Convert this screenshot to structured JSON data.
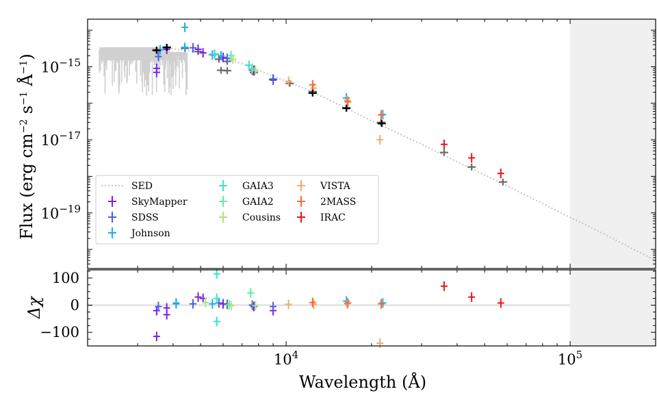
{
  "chart_data": [
    {
      "type": "scatter",
      "panel": "sed",
      "xscale": "log",
      "yscale": "log",
      "xlim": [
        2000,
        200000
      ],
      "ylim": [
        3e-21,
        2e-14
      ],
      "xlabel": "Wavelength (Å)",
      "ylabel": "Flux (erg cm⁻² s⁻¹ Å⁻¹)",
      "ylabel_main": "Flux (erg cm",
      "ylabel_exp1": "−2",
      "ylabel_mid": " s",
      "ylabel_exp2": "−1",
      "ylabel_unit": " Å",
      "ylabel_exp3": "−1",
      "ylabel_end": ")",
      "x_ticks": [
        {
          "value": 10000,
          "base": "10",
          "exp": "4"
        },
        {
          "value": 100000,
          "base": "10",
          "exp": "5"
        }
      ],
      "y_ticks": [
        {
          "value": 1e-15,
          "base": "10",
          "exp": "−15"
        },
        {
          "value": 1e-17,
          "base": "10",
          "exp": "−17"
        },
        {
          "value": 1e-19,
          "base": "10",
          "exp": "−19"
        }
      ],
      "shaded_region": {
        "x_from": 100000,
        "x_to": 200000,
        "color": "#f0f0f0"
      },
      "legend": {
        "placement": "lower-left",
        "entries": [
          {
            "label": "SED",
            "color": "#c8c8c8",
            "style": "dotted"
          },
          {
            "label": "SkyMapper",
            "color": "#7b1fe6"
          },
          {
            "label": "SDSS",
            "color": "#4a5fe0"
          },
          {
            "label": "Johnson",
            "color": "#1eaee6"
          },
          {
            "label": "GAIA3",
            "color": "#37e2d2"
          },
          {
            "label": "GAIA2",
            "color": "#5deba8"
          },
          {
            "label": "Cousins",
            "color": "#a6e87a"
          },
          {
            "label": "VISTA",
            "color": "#f4aa6c"
          },
          {
            "label": "2MASS",
            "color": "#f26b3a"
          },
          {
            "label": "IRAC",
            "color": "#e81414"
          }
        ]
      },
      "sed_model": {
        "color": "#c8c8c8",
        "points": [
          [
            2200,
            2.8e-15
          ],
          [
            2500,
            2.9e-15
          ],
          [
            3000,
            3e-15
          ],
          [
            3500,
            3.1e-15
          ],
          [
            4000,
            3.1e-15
          ],
          [
            5000,
            2.5e-15
          ],
          [
            6000,
            1.8e-15
          ],
          [
            7000,
            1.2e-15
          ],
          [
            8000,
            8e-16
          ],
          [
            10000,
            4e-16
          ],
          [
            12000,
            2.3e-16
          ],
          [
            15000,
            1e-16
          ],
          [
            20000,
            3.3e-17
          ],
          [
            30000,
            7.5e-18
          ],
          [
            40000,
            2.5e-18
          ],
          [
            50000,
            1.1e-18
          ],
          [
            60000,
            5.5e-19
          ],
          [
            80000,
            1.8e-19
          ],
          [
            100000,
            7.5e-20
          ],
          [
            130000,
            2.8e-20
          ],
          [
            160000,
            1.2e-20
          ],
          [
            200000,
            5e-21
          ]
        ],
        "absorption_region": {
          "x_from": 2200,
          "x_to": 4500,
          "min_flux": 1.5e-16
        }
      },
      "model_fluxes": {
        "color": "#6a6a6a",
        "points": [
          [
            3500,
            2.9e-15
          ],
          [
            3800,
            3.3e-15
          ],
          [
            4400,
            3.2e-15
          ],
          [
            4900,
            2.6e-15
          ],
          [
            5600,
            2.2e-15
          ],
          [
            5800,
            1.6e-15
          ],
          [
            6200,
            1.4e-15
          ],
          [
            5900,
            8e-16
          ],
          [
            6200,
            7.8e-16
          ],
          [
            7700,
            7e-16
          ],
          [
            9000,
            4.5e-16
          ],
          [
            10300,
            3.5e-16
          ],
          [
            12400,
            2.1e-16
          ],
          [
            16300,
            7.5e-17
          ],
          [
            21600,
            3e-17
          ],
          [
            36000,
            4.5e-18
          ],
          [
            45000,
            1.8e-18
          ],
          [
            58000,
            7e-19
          ]
        ]
      },
      "series": [
        {
          "name": "SkyMapper",
          "color": "#7b1fe6",
          "points": [
            [
              3500,
              9e-16
            ],
            [
              3500,
              7e-16
            ],
            [
              3800,
              3e-15
            ],
            [
              4900,
              3e-15
            ],
            [
              5100,
              2.4e-15
            ],
            [
              6000,
              1.8e-15
            ],
            [
              7700,
              8e-16
            ],
            [
              9000,
              4.3e-16
            ]
          ]
        },
        {
          "name": "SDSS",
          "color": "#4a5fe0",
          "points": [
            [
              3550,
              1.9e-15
            ],
            [
              4700,
              3.3e-15
            ],
            [
              6200,
              1.7e-15
            ],
            [
              7600,
              8e-16
            ],
            [
              9000,
              4.6e-16
            ]
          ]
        },
        {
          "name": "Johnson",
          "color": "#1eaee6",
          "points": [
            [
              3600,
              2.9e-15
            ],
            [
              4400,
              1.2e-14
            ],
            [
              4400,
              3.4e-15
            ],
            [
              5500,
              2.1e-15
            ],
            [
              5900,
              2e-15
            ],
            [
              16300,
              1.4e-16
            ],
            [
              21900,
              4.9e-17
            ]
          ]
        },
        {
          "name": "GAIA3",
          "color": "#37e2d2",
          "points": [
            [
              5600,
              2.2e-15
            ],
            [
              7400,
              1.1e-15
            ]
          ]
        },
        {
          "name": "GAIA2",
          "color": "#5deba8",
          "points": [
            [
              6400,
              2e-15
            ],
            [
              7600,
              9e-16
            ]
          ]
        },
        {
          "name": "Cousins",
          "color": "#a6e87a",
          "points": [
            [
              6500,
              1.6e-15
            ],
            [
              7800,
              8e-16
            ]
          ]
        },
        {
          "name": "VISTA",
          "color": "#f4aa6c",
          "points": [
            [
              10200,
              4e-16
            ],
            [
              12500,
              2.6e-16
            ],
            [
              16400,
              1.2e-16
            ],
            [
              21400,
              1e-17
            ]
          ]
        },
        {
          "name": "2MASS",
          "color": "#f26b3a",
          "points": [
            [
              12400,
              3.2e-16
            ],
            [
              16500,
              1.1e-16
            ],
            [
              21600,
              4.8e-17
            ]
          ]
        },
        {
          "name": "IRAC",
          "color": "#e81414",
          "points": [
            [
              36000,
              7.5e-18
            ],
            [
              45000,
              3.2e-18
            ],
            [
              57000,
              1.2e-18
            ]
          ]
        }
      ],
      "black_points": [
        [
          3500,
          2.8e-15
        ],
        [
          3800,
          3.4e-15
        ],
        [
          12400,
          1.9e-16
        ],
        [
          16300,
          7.3e-17
        ],
        [
          21700,
          2.8e-17
        ]
      ]
    },
    {
      "type": "scatter",
      "panel": "residuals",
      "xscale": "log",
      "xlim": [
        2000,
        200000
      ],
      "ylim": [
        -150,
        130
      ],
      "xlabel": "Wavelength (Å)",
      "ylabel": "Δχ",
      "y_ticks": [
        100,
        0,
        -100
      ],
      "zero_line": 0,
      "shaded_region": {
        "x_from": 100000,
        "x_to": 200000
      },
      "series": [
        {
          "name": "SkyMapper",
          "color": "#7b1fe6",
          "points": [
            [
              3500,
              -20
            ],
            [
              3500,
              -115
            ],
            [
              3800,
              -35
            ],
            [
              3800,
              -10
            ],
            [
              4900,
              30
            ],
            [
              5100,
              25
            ],
            [
              6000,
              5
            ],
            [
              7700,
              -5
            ],
            [
              9000,
              -20
            ]
          ]
        },
        {
          "name": "SDSS",
          "color": "#4a5fe0",
          "points": [
            [
              3550,
              -5
            ],
            [
              4700,
              5
            ],
            [
              5800,
              8
            ],
            [
              6200,
              3
            ],
            [
              9000,
              -5
            ],
            [
              7600,
              0
            ]
          ]
        },
        {
          "name": "Johnson",
          "color": "#1eaee6",
          "points": [
            [
              4100,
              8
            ],
            [
              4100,
              5
            ],
            [
              5500,
              5
            ],
            [
              16300,
              15
            ],
            [
              21900,
              8
            ]
          ]
        },
        {
          "name": "GAIA3",
          "color": "#37e2d2",
          "points": [
            [
              5700,
              115
            ],
            [
              5700,
              25
            ],
            [
              5700,
              -60
            ]
          ]
        },
        {
          "name": "GAIA2",
          "color": "#5deba8",
          "points": [
            [
              6300,
              2
            ],
            [
              7500,
              45
            ]
          ]
        },
        {
          "name": "Cousins",
          "color": "#a6e87a",
          "points": [
            [
              5200,
              10
            ],
            [
              6400,
              -2
            ],
            [
              7800,
              -2
            ]
          ]
        },
        {
          "name": "VISTA",
          "color": "#f4aa6c",
          "points": [
            [
              10200,
              3
            ],
            [
              12500,
              3
            ],
            [
              16400,
              5
            ],
            [
              21400,
              -140
            ]
          ]
        },
        {
          "name": "2MASS",
          "color": "#f26b3a",
          "points": [
            [
              12400,
              10
            ],
            [
              16500,
              8
            ],
            [
              21600,
              5
            ]
          ]
        },
        {
          "name": "IRAC",
          "color": "#e81414",
          "points": [
            [
              36000,
              70
            ],
            [
              45000,
              30
            ],
            [
              57000,
              8
            ]
          ]
        }
      ]
    }
  ]
}
